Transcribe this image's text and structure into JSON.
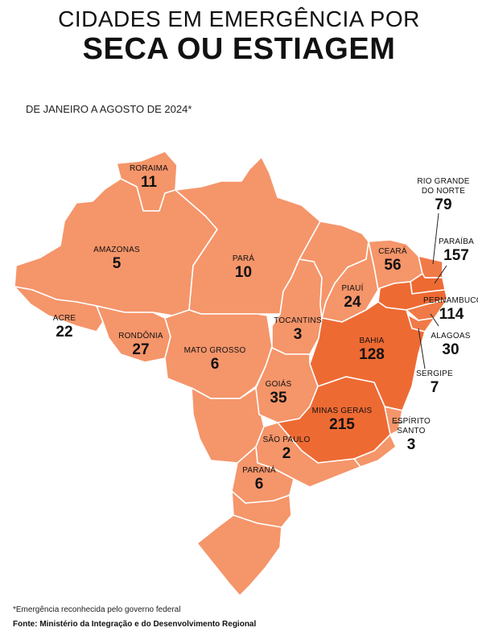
{
  "title_line1": "CIDADES EM EMERGÊNCIA POR",
  "title_line2": "SECA OU ESTIAGEM",
  "subtitle": "DE JANEIRO A AGOSTO DE 2024*",
  "footnote": "*Emergência reconhecida pelo governo federal",
  "source": "Fonte: Ministério da Integração e do Desenvolvimento Regional",
  "colors": {
    "base": "#f5956a",
    "medium": "#f07a47",
    "dark": "#ee6a33",
    "border": "#ffffff"
  },
  "states": {
    "roraima": {
      "name": "RORAIMA",
      "value": "11"
    },
    "amazonas": {
      "name": "AMAZONAS",
      "value": "5"
    },
    "acre": {
      "name": "ACRE",
      "value": "22"
    },
    "rondonia": {
      "name": "RONDÔNIA",
      "value": "27"
    },
    "para": {
      "name": "PARÁ",
      "value": "10"
    },
    "mato_grosso": {
      "name": "MATO GROSSO",
      "value": "6"
    },
    "tocantins": {
      "name": "TOCANTINS",
      "value": "3"
    },
    "goias": {
      "name": "GOIÁS",
      "value": "35"
    },
    "sao_paulo": {
      "name": "SÃO PAULO",
      "value": "2"
    },
    "parana": {
      "name": "PARANÁ",
      "value": "6"
    },
    "minas_gerais": {
      "name": "MINAS GERAIS",
      "value": "215"
    },
    "bahia": {
      "name": "BAHIA",
      "value": "128"
    },
    "piaui": {
      "name": "PIAUÍ",
      "value": "24"
    },
    "ceara": {
      "name": "CEARÁ",
      "value": "56"
    },
    "rio_grande_do_norte": {
      "name_line1": "RIO GRANDE",
      "name_line2": "DO NORTE",
      "value": "79"
    },
    "paraiba": {
      "name": "PARAÍBA",
      "value": "157"
    },
    "pernambuco": {
      "name": "PERNAMBUCO",
      "value": "114"
    },
    "alagoas": {
      "name": "ALAGOAS",
      "value": "30"
    },
    "sergipe": {
      "name": "SERGIPE",
      "value": "7"
    },
    "espirito_santo": {
      "name": "ESPÍRITO SANTO",
      "value": "3"
    }
  }
}
